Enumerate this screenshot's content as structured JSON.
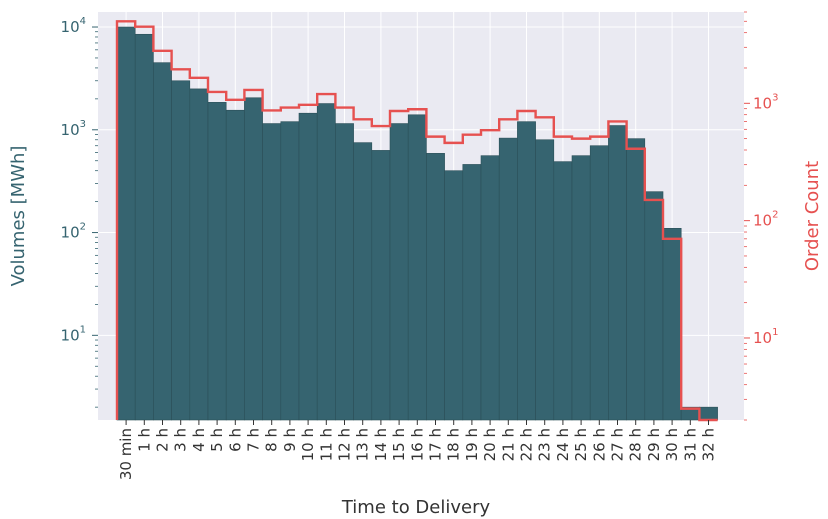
{
  "chart_data": {
    "type": "bar",
    "xlabel": "Time to Delivery",
    "ylabel": "Volumes [MWh]",
    "y2label": "Order Count",
    "categories": [
      "30 min",
      "1 h",
      "2 h",
      "3 h",
      "4 h",
      "5 h",
      "6 h",
      "7 h",
      "8 h",
      "9 h",
      "10 h",
      "11 h",
      "12 h",
      "13 h",
      "14 h",
      "15 h",
      "16 h",
      "17 h",
      "18 h",
      "19 h",
      "20 h",
      "21 h",
      "22 h",
      "23 h",
      "24 h",
      "25 h",
      "26 h",
      "27 h",
      "28 h",
      "29 h",
      "30 h",
      "31 h",
      "32 h"
    ],
    "y_scale": "log",
    "y2_scale": "log",
    "ylim": [
      1.5,
      14000
    ],
    "y2lim": [
      2.0,
      6000
    ],
    "y_ticks": [
      {
        "value": 10,
        "label": "10",
        "exp": "1"
      },
      {
        "value": 100,
        "label": "10",
        "exp": "2"
      },
      {
        "value": 1000,
        "label": "10",
        "exp": "3"
      },
      {
        "value": 10000,
        "label": "10",
        "exp": "4"
      }
    ],
    "y2_ticks": [
      {
        "value": 10,
        "label": "10",
        "exp": "1"
      },
      {
        "value": 100,
        "label": "10",
        "exp": "2"
      },
      {
        "value": 1000,
        "label": "10",
        "exp": "3"
      }
    ],
    "grid": true,
    "colors": {
      "volumes": "#366470",
      "orders": "#e65150",
      "background": "#eaeaf2",
      "grid": "#ffffff",
      "text": "#333333"
    },
    "series": [
      {
        "name": "Volumes [MWh]",
        "style": "filled-bars",
        "axis": "left",
        "values": [
          10000,
          8500,
          4500,
          3000,
          2500,
          1850,
          1550,
          2050,
          1150,
          1200,
          1450,
          1800,
          1150,
          750,
          630,
          1150,
          1400,
          590,
          400,
          460,
          560,
          830,
          1200,
          800,
          490,
          560,
          700,
          1100,
          820,
          250,
          110,
          2,
          2
        ]
      },
      {
        "name": "Order Count",
        "style": "step-outline",
        "axis": "right",
        "values": [
          5000,
          4500,
          2800,
          1950,
          1650,
          1250,
          1070,
          1300,
          870,
          920,
          970,
          1200,
          920,
          730,
          640,
          860,
          890,
          520,
          460,
          540,
          590,
          730,
          860,
          760,
          520,
          500,
          520,
          700,
          410,
          150,
          70,
          2.5,
          2
        ]
      }
    ]
  }
}
